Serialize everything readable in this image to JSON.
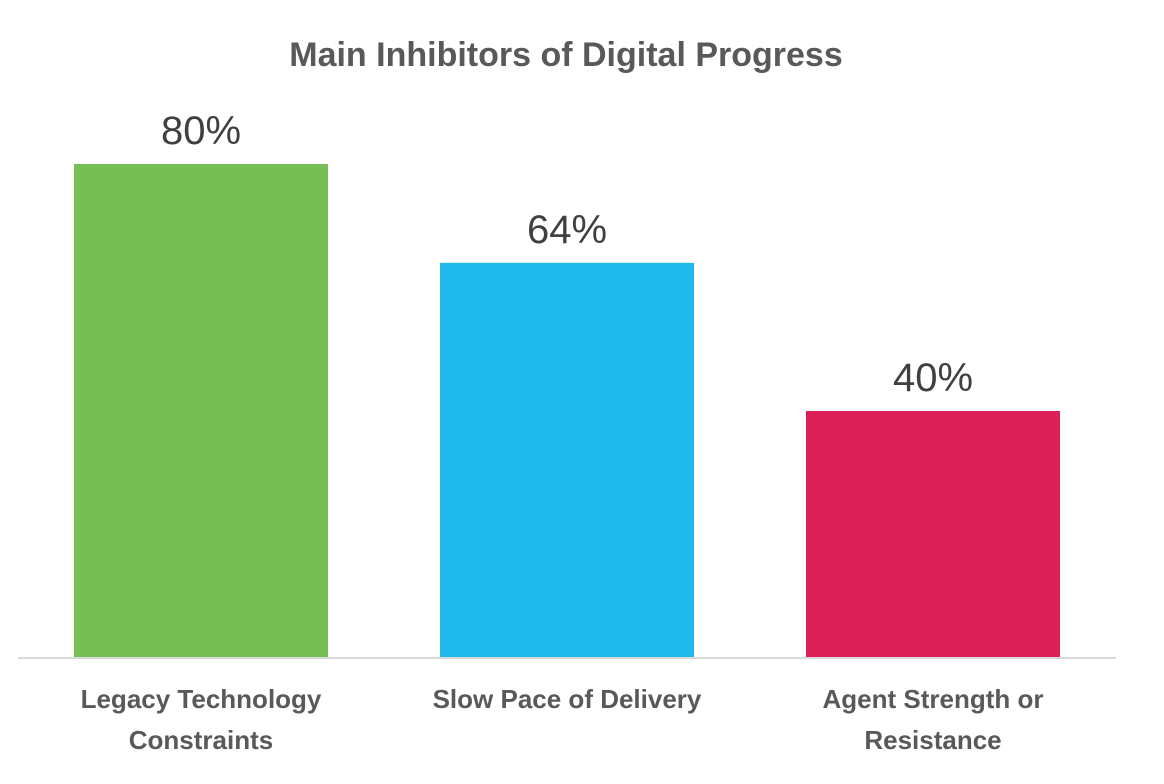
{
  "chart_data": {
    "type": "bar",
    "title": "Main Inhibitors of Digital Progress",
    "categories": [
      [
        "Legacy Technology",
        "Constraints"
      ],
      [
        "Slow Pace of Delivery"
      ],
      [
        "Agent Strength or",
        "Resistance"
      ]
    ],
    "values": [
      80,
      64,
      40
    ],
    "value_labels": [
      "80%",
      "64%",
      "40%"
    ],
    "unit": "%",
    "colors": [
      "#77bf55",
      "#20b9ec",
      "#dc1f56"
    ],
    "ylim": [
      0,
      100
    ],
    "xlabel": "",
    "ylabel": "",
    "grid": false,
    "legend": "none"
  }
}
